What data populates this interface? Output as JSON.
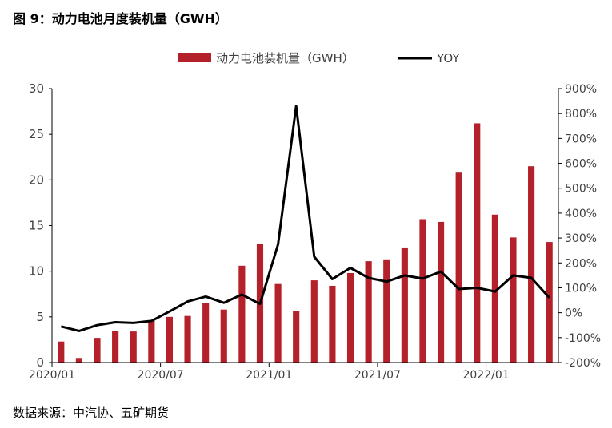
{
  "figure": {
    "title": "图 9：动力电池月度装机量（GWH）",
    "source": "数据来源：中汽协、五矿期货"
  },
  "colors": {
    "bar": "#b5212b",
    "line": "#000000",
    "axis": "#000000",
    "text": "#404040"
  },
  "chart_data": {
    "type": "bar",
    "title": "",
    "x": [
      "2020/01",
      "2020/02",
      "2020/03",
      "2020/04",
      "2020/05",
      "2020/06",
      "2020/07",
      "2020/08",
      "2020/09",
      "2020/10",
      "2020/11",
      "2020/12",
      "2021/01",
      "2021/02",
      "2021/03",
      "2021/04",
      "2021/05",
      "2021/06",
      "2021/07",
      "2021/08",
      "2021/09",
      "2021/10",
      "2021/11",
      "2021/12",
      "2022/01",
      "2022/02",
      "2022/03",
      "2022/04"
    ],
    "x_tick_labels": [
      "2020/01",
      "2020/07",
      "2021/01",
      "2021/07",
      "2022/01"
    ],
    "series": [
      {
        "name": "动力电池装机量（GWH）",
        "type": "bar",
        "axis": "left",
        "values": [
          2.3,
          0.5,
          2.7,
          3.5,
          3.4,
          4.6,
          5.0,
          5.1,
          6.5,
          5.8,
          10.6,
          13.0,
          8.6,
          5.6,
          9.0,
          8.4,
          9.8,
          11.1,
          11.3,
          12.6,
          15.7,
          15.4,
          20.8,
          26.2,
          16.2,
          13.7,
          21.5,
          13.2
        ]
      },
      {
        "name": "YOY",
        "type": "line",
        "axis": "right",
        "values": [
          -55,
          -73,
          -50,
          -38,
          -41,
          -33,
          5,
          45,
          65,
          40,
          73,
          35,
          275,
          830,
          225,
          135,
          180,
          140,
          125,
          150,
          137,
          165,
          95,
          100,
          85,
          150,
          140,
          60
        ]
      }
    ],
    "y_left": {
      "lim": [
        0,
        30
      ],
      "ticks": [
        0,
        5,
        10,
        15,
        20,
        25,
        30
      ],
      "tick_labels": [
        "0",
        "5",
        "10",
        "15",
        "20",
        "25",
        "30"
      ]
    },
    "y_right": {
      "lim": [
        -200,
        900
      ],
      "ticks": [
        -200,
        -100,
        0,
        100,
        200,
        300,
        400,
        500,
        600,
        700,
        800,
        900
      ],
      "tick_labels": [
        "-200%",
        "-100%",
        "0%",
        "100%",
        "200%",
        "300%",
        "400%",
        "500%",
        "600%",
        "700%",
        "800%",
        "900%"
      ]
    },
    "legend": {
      "placement": "top-center"
    },
    "grid": false
  }
}
